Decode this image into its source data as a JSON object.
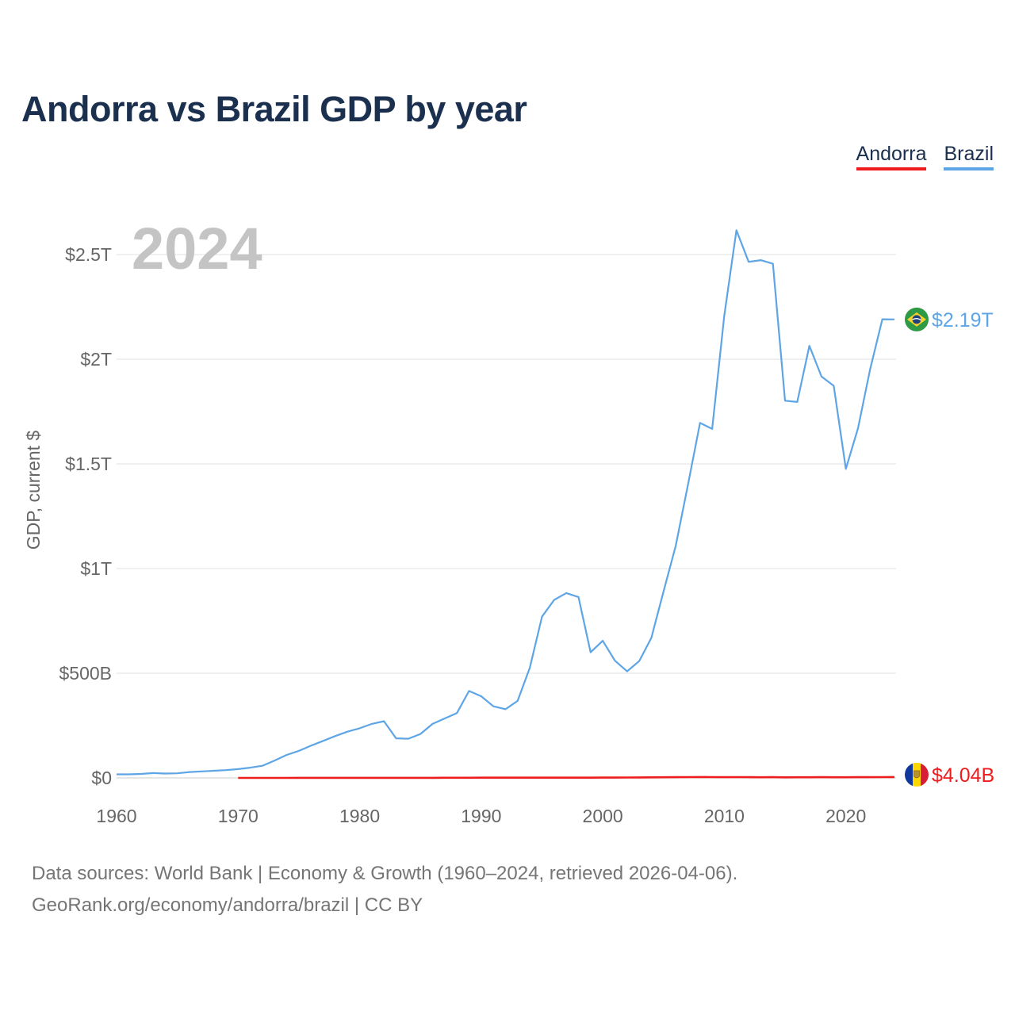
{
  "title": "Andorra vs Brazil GDP by year",
  "legend": [
    {
      "name": "Andorra",
      "color": "#ee1c1c"
    },
    {
      "name": "Brazil",
      "color": "#5ea5e6"
    }
  ],
  "year_display": "2024",
  "end_labels": {
    "brazil": "$2.19T",
    "andorra": "$4.04B"
  },
  "footer": {
    "line1": "Data sources: World Bank | Economy & Growth (1960–2024, retrieved 2026-04-06).",
    "line2": "GeoRank.org/economy/andorra/brazil | CC BY"
  },
  "chart_data": {
    "type": "line",
    "title": "Andorra vs Brazil GDP by year",
    "xlabel": "",
    "ylabel": "GDP, current $",
    "xlim": [
      1960,
      2024
    ],
    "ylim": [
      0,
      2.75
    ],
    "y_unit": "trillion USD",
    "x_ticks": [
      1960,
      1970,
      1980,
      1990,
      2000,
      2010,
      2020
    ],
    "y_ticks": [
      {
        "value": 0,
        "label": "$0"
      },
      {
        "value": 0.5,
        "label": "$500B"
      },
      {
        "value": 1,
        "label": "$1T"
      },
      {
        "value": 1.5,
        "label": "$1.5T"
      },
      {
        "value": 2,
        "label": "$2T"
      },
      {
        "value": 2.5,
        "label": "$2.5T"
      }
    ],
    "grid": true,
    "legend_position": "top-right",
    "series": [
      {
        "name": "Brazil",
        "color": "#5ea5e6",
        "x": [
          1960,
          1961,
          1962,
          1963,
          1964,
          1965,
          1966,
          1967,
          1968,
          1969,
          1970,
          1971,
          1972,
          1973,
          1974,
          1975,
          1976,
          1977,
          1978,
          1979,
          1980,
          1981,
          1982,
          1983,
          1984,
          1985,
          1986,
          1987,
          1988,
          1989,
          1990,
          1991,
          1992,
          1993,
          1994,
          1995,
          1996,
          1997,
          1998,
          1999,
          2000,
          2001,
          2002,
          2003,
          2004,
          2005,
          2006,
          2007,
          2008,
          2009,
          2010,
          2011,
          2012,
          2013,
          2014,
          2015,
          2016,
          2017,
          2018,
          2019,
          2020,
          2021,
          2022,
          2023,
          2024
        ],
        "values": [
          0.017,
          0.017,
          0.019,
          0.023,
          0.021,
          0.022,
          0.028,
          0.031,
          0.034,
          0.037,
          0.042,
          0.049,
          0.058,
          0.083,
          0.11,
          0.129,
          0.154,
          0.177,
          0.2,
          0.221,
          0.237,
          0.258,
          0.271,
          0.189,
          0.187,
          0.21,
          0.258,
          0.284,
          0.31,
          0.415,
          0.39,
          0.342,
          0.328,
          0.368,
          0.527,
          0.77,
          0.85,
          0.883,
          0.864,
          0.6,
          0.655,
          0.56,
          0.509,
          0.558,
          0.669,
          0.891,
          1.108,
          1.397,
          1.696,
          1.667,
          2.209,
          2.616,
          2.465,
          2.473,
          2.456,
          1.802,
          1.796,
          2.064,
          1.917,
          1.873,
          1.476,
          1.67,
          1.952,
          2.191,
          2.19
        ]
      },
      {
        "name": "Andorra",
        "color": "#ee1c1c",
        "x": [
          1970,
          1971,
          1972,
          1973,
          1974,
          1975,
          1976,
          1977,
          1978,
          1979,
          1980,
          1981,
          1982,
          1983,
          1984,
          1985,
          1986,
          1987,
          1988,
          1989,
          1990,
          1991,
          1992,
          1993,
          1994,
          1995,
          1996,
          1997,
          1998,
          1999,
          2000,
          2001,
          2002,
          2003,
          2004,
          2005,
          2006,
          2007,
          2008,
          2009,
          2010,
          2011,
          2012,
          2013,
          2014,
          2015,
          2016,
          2017,
          2018,
          2019,
          2020,
          2021,
          2022,
          2023,
          2024
        ],
        "values": [
          8e-05,
          9e-05,
          0.00011,
          0.00014,
          0.00018,
          0.00022,
          0.00024,
          0.00027,
          0.00033,
          0.00041,
          0.00045,
          0.00039,
          0.00037,
          0.00033,
          0.00032,
          0.00035,
          0.00048,
          0.00061,
          0.00072,
          0.0008,
          0.00103,
          0.00103,
          0.00115,
          0.00101,
          0.00102,
          0.00117,
          0.00115,
          0.00106,
          0.0011,
          0.00112,
          0.00143,
          0.00155,
          0.00172,
          0.00221,
          0.00273,
          0.00304,
          0.00323,
          0.00365,
          0.00401,
          0.00366,
          0.00341,
          0.0037,
          0.00322,
          0.00317,
          0.00323,
          0.0028,
          0.0029,
          0.00302,
          0.00322,
          0.00315,
          0.00289,
          0.00332,
          0.00338,
          0.00378,
          0.00404
        ]
      }
    ]
  }
}
